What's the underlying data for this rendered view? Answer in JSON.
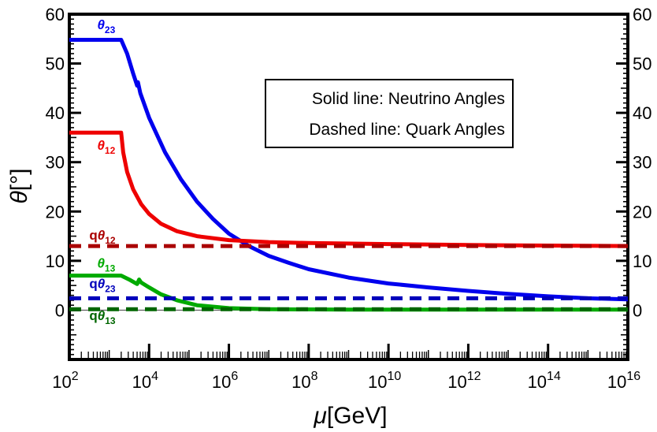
{
  "chart_data": {
    "type": "line",
    "xscale": "log10",
    "xlim_log10": [
      2,
      16
    ],
    "ylim": [
      -10,
      60
    ],
    "xlabel": {
      "symbol": "μ",
      "unit": "[GeV]"
    },
    "ylabel": {
      "symbol": "θ",
      "unit": "[°]"
    },
    "xticks": [
      {
        "base": "10",
        "exp": "2",
        "at": 2
      },
      {
        "base": "10",
        "exp": "4",
        "at": 4
      },
      {
        "base": "10",
        "exp": "6",
        "at": 6
      },
      {
        "base": "10",
        "exp": "8",
        "at": 8
      },
      {
        "base": "10",
        "exp": "10",
        "at": 10
      },
      {
        "base": "10",
        "exp": "12",
        "at": 12
      },
      {
        "base": "10",
        "exp": "14",
        "at": 14
      },
      {
        "base": "10",
        "exp": "16",
        "at": 16
      }
    ],
    "yticks": [
      "0",
      "10",
      "20",
      "30",
      "40",
      "50",
      "60"
    ],
    "ytick_values": [
      0,
      10,
      20,
      30,
      40,
      50,
      60
    ],
    "legend": [
      "Solid line: Neutrino Angles",
      "Dashed line: Quark Angles"
    ],
    "series": [
      {
        "name": "θ23",
        "style": "solid",
        "color": "#0000ee",
        "points": [
          [
            2,
            54.8
          ],
          [
            3.3,
            54.8
          ],
          [
            3.45,
            52
          ],
          [
            3.6,
            48
          ],
          [
            3.7,
            45.5
          ],
          [
            3.72,
            46.2
          ],
          [
            3.78,
            44
          ],
          [
            4,
            39
          ],
          [
            4.4,
            32
          ],
          [
            4.8,
            26.5
          ],
          [
            5.2,
            22
          ],
          [
            5.6,
            18.5
          ],
          [
            6,
            15.5
          ],
          [
            6.5,
            13
          ],
          [
            7,
            11
          ],
          [
            7.5,
            9.6
          ],
          [
            8,
            8.3
          ],
          [
            9,
            6.6
          ],
          [
            10,
            5.4
          ],
          [
            11,
            4.6
          ],
          [
            12,
            3.9
          ],
          [
            13,
            3.3
          ],
          [
            14,
            2.8
          ],
          [
            15,
            2.4
          ],
          [
            16,
            2.2
          ]
        ]
      },
      {
        "name": "θ12",
        "style": "solid",
        "color": "#ee0000",
        "points": [
          [
            2,
            36
          ],
          [
            3.3,
            36
          ],
          [
            3.35,
            32
          ],
          [
            3.45,
            28
          ],
          [
            3.6,
            24.5
          ],
          [
            3.8,
            21.5
          ],
          [
            4,
            19.5
          ],
          [
            4.3,
            17.5
          ],
          [
            4.7,
            16
          ],
          [
            5.2,
            15
          ],
          [
            6,
            14.2
          ],
          [
            7,
            13.8
          ],
          [
            8,
            13.6
          ],
          [
            10,
            13.4
          ],
          [
            12,
            13.2
          ],
          [
            14,
            13.1
          ],
          [
            16,
            13
          ]
        ]
      },
      {
        "name": "θ13",
        "style": "solid",
        "color": "#00aa00",
        "points": [
          [
            2,
            7
          ],
          [
            3.3,
            7
          ],
          [
            3.5,
            6.2
          ],
          [
            3.7,
            5.3
          ],
          [
            3.75,
            6.2
          ],
          [
            3.8,
            5.6
          ],
          [
            4,
            4.6
          ],
          [
            4.3,
            3.2
          ],
          [
            4.7,
            2
          ],
          [
            5.2,
            1
          ],
          [
            6,
            0.4
          ],
          [
            7,
            0.2
          ],
          [
            9,
            0.1
          ],
          [
            12,
            0.1
          ],
          [
            16,
            0.1
          ]
        ]
      },
      {
        "name": "qθ12",
        "style": "dashed",
        "color": "#aa0000",
        "points": [
          [
            2,
            13
          ],
          [
            16,
            13
          ]
        ]
      },
      {
        "name": "qθ23",
        "style": "dashed",
        "color": "#0000bb",
        "points": [
          [
            2,
            2.4
          ],
          [
            16,
            2.4
          ]
        ]
      },
      {
        "name": "qθ13",
        "style": "dashed",
        "color": "#006600",
        "points": [
          [
            2,
            0.2
          ],
          [
            16,
            0.2
          ]
        ]
      }
    ],
    "annotations": [
      {
        "prefix": "",
        "sym": "θ",
        "sub": "23",
        "color": "#0000ee",
        "at": [
          2.7,
          57
        ]
      },
      {
        "prefix": "",
        "sym": "θ",
        "sub": "12",
        "color": "#ee0000",
        "at": [
          2.7,
          32.5
        ]
      },
      {
        "prefix": "q",
        "sym": "θ",
        "sub": "12",
        "color": "#aa0000",
        "at": [
          2.5,
          14.3
        ]
      },
      {
        "prefix": "",
        "sym": "θ",
        "sub": "13",
        "color": "#00aa00",
        "at": [
          2.7,
          8.6
        ]
      },
      {
        "prefix": "q",
        "sym": "θ",
        "sub": "23",
        "color": "#0000bb",
        "at": [
          2.5,
          4.5
        ]
      },
      {
        "prefix": "q",
        "sym": "θ",
        "sub": "13",
        "color": "#006600",
        "at": [
          2.5,
          -2
        ]
      }
    ],
    "reference_line_y": 0
  }
}
